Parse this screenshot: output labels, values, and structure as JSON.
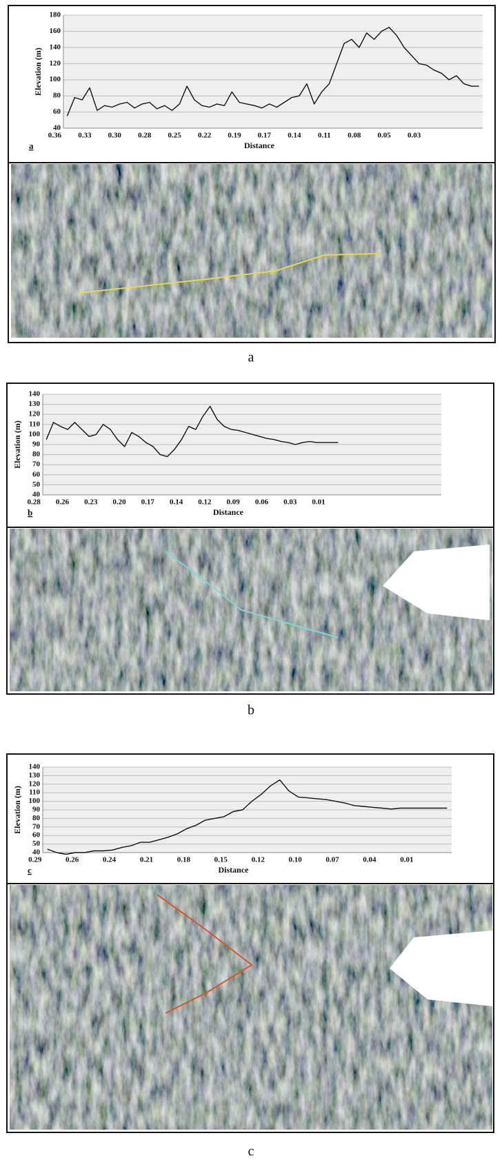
{
  "chart_data": [
    {
      "type": "line",
      "panel_label": "a",
      "caption": "a",
      "y_label": "Elevation (m)",
      "x_label": "Distance",
      "categories": [
        "0.36",
        null,
        null,
        null,
        "0.33",
        null,
        null,
        null,
        "0.30",
        null,
        null,
        null,
        "0.28",
        null,
        null,
        null,
        "0.25",
        null,
        null,
        null,
        "0.22",
        null,
        null,
        null,
        "0.19",
        null,
        null,
        null,
        "0.17",
        null,
        null,
        null,
        "0.14",
        null,
        null,
        null,
        "0.11",
        null,
        null,
        null,
        "0.08",
        null,
        null,
        null,
        "0.05",
        null,
        null,
        null,
        "0.03",
        null,
        null,
        null,
        null,
        null,
        null,
        null
      ],
      "values": [
        55,
        78,
        75,
        90,
        62,
        68,
        66,
        70,
        72,
        65,
        70,
        72,
        64,
        68,
        62,
        70,
        92,
        75,
        68,
        66,
        70,
        68,
        85,
        72,
        70,
        68,
        65,
        70,
        66,
        72,
        78,
        80,
        95,
        70,
        85,
        95,
        120,
        145,
        150,
        140,
        158,
        150,
        160,
        165,
        155,
        140,
        130,
        120,
        118,
        112,
        108,
        100,
        105,
        95,
        92,
        92
      ],
      "color": "#111111",
      "ylim": [
        40,
        180
      ],
      "yticks": [
        40,
        60,
        80,
        100,
        120,
        140,
        160,
        180
      ],
      "grid": true,
      "line_color": "#e8d84a"
    },
    {
      "type": "line",
      "panel_label": "b",
      "caption": "b",
      "y_label": "Elevation (m)",
      "x_label": "Distance",
      "categories": [
        "0.28",
        null,
        null,
        null,
        "0.26",
        null,
        null,
        null,
        "0.23",
        null,
        null,
        null,
        "0.20",
        null,
        null,
        null,
        "0.17",
        null,
        null,
        null,
        "0.14",
        null,
        null,
        null,
        "0.12",
        null,
        null,
        null,
        "0.09",
        null,
        null,
        null,
        "0.06",
        null,
        null,
        null,
        "0.03",
        null,
        null,
        null,
        "0.01",
        null,
        null,
        null,
        null,
        null,
        null,
        null,
        null,
        null,
        null,
        null,
        null,
        null,
        null,
        null
      ],
      "values": [
        95,
        112,
        108,
        105,
        112,
        105,
        98,
        100,
        110,
        105,
        95,
        88,
        102,
        98,
        92,
        88,
        80,
        78,
        85,
        95,
        108,
        105,
        118,
        128,
        115,
        108,
        105,
        104,
        102,
        100,
        98,
        96,
        95,
        93,
        92,
        90,
        92,
        93,
        92,
        92,
        92,
        92,
        null,
        null,
        null,
        null,
        null,
        null,
        null,
        null,
        null,
        null,
        null,
        null,
        null,
        null
      ],
      "color": "#111111",
      "ylim": [
        40,
        140
      ],
      "yticks": [
        40,
        50,
        60,
        70,
        80,
        90,
        100,
        110,
        120,
        130,
        140
      ],
      "grid": true,
      "line_color": "#7fd8d0"
    },
    {
      "type": "line",
      "panel_label": "c",
      "caption": "c",
      "y_label": "Elevation (m)",
      "x_label": "Distance",
      "categories": [
        "0.29",
        null,
        null,
        null,
        "0.26",
        null,
        null,
        null,
        "0.24",
        null,
        null,
        null,
        "0.21",
        null,
        null,
        null,
        "0.18",
        null,
        null,
        null,
        "0.15",
        null,
        null,
        null,
        "0.12",
        null,
        null,
        null,
        "0.10",
        null,
        null,
        null,
        "0.07",
        null,
        null,
        null,
        "0.04",
        null,
        null,
        null,
        "0.01",
        null,
        null,
        null
      ],
      "values": [
        44,
        40,
        38,
        40,
        40,
        42,
        42,
        43,
        46,
        48,
        52,
        52,
        55,
        58,
        62,
        68,
        72,
        78,
        80,
        82,
        88,
        90,
        100,
        108,
        118,
        125,
        112,
        105,
        104,
        103,
        102,
        100,
        98,
        95,
        94,
        93,
        92,
        91,
        92,
        92,
        92,
        92,
        92,
        92
      ],
      "color": "#111111",
      "ylim": [
        40,
        140
      ],
      "yticks": [
        40,
        50,
        60,
        70,
        80,
        90,
        100,
        110,
        120,
        130,
        140
      ],
      "grid": true,
      "line_color": "#d9552e"
    }
  ]
}
